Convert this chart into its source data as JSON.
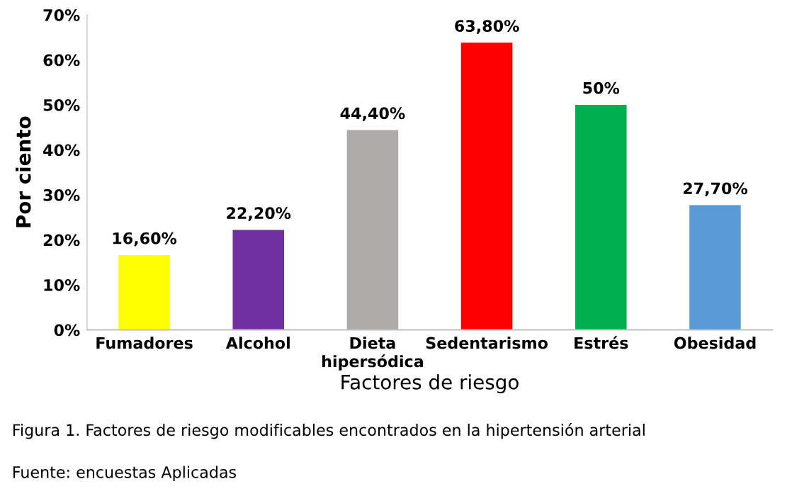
{
  "chart_data": {
    "type": "bar",
    "xlabel": "Factores de riesgo",
    "ylabel": "Por ciento",
    "categories": [
      "Fumadores",
      "Alcohol",
      "Dieta\nhipersódica",
      "Sedentarismo",
      "Estrés",
      "Obesidad"
    ],
    "values": [
      16.6,
      22.2,
      44.4,
      63.8,
      50,
      27.7
    ],
    "colors": [
      "#ffff00",
      "#7030a0",
      "#aeaaaa",
      "#ff0000",
      "#00b050",
      "#5b9bd5"
    ],
    "value_labels": [
      "16,60%",
      "22,20%",
      "44,40%",
      "63,80%",
      "50%",
      "27,70%"
    ],
    "ylim": [
      0,
      70
    ],
    "yticks": [
      {
        "value": 0,
        "label": "0%"
      },
      {
        "value": 10,
        "label": "10%"
      },
      {
        "value": 20,
        "label": "20%"
      },
      {
        "value": 30,
        "label": "30%"
      },
      {
        "value": 40,
        "label": "40%"
      },
      {
        "value": 50,
        "label": "50%"
      },
      {
        "value": 60,
        "label": "60%"
      },
      {
        "value": 70,
        "label": "70%"
      }
    ],
    "grid": false,
    "legend": false,
    "annotations": [
      "Figura 1. Factores de riesgo modificables encontrados en la hipertensión arterial",
      "Fuente: encuestas Aplicadas"
    ]
  }
}
